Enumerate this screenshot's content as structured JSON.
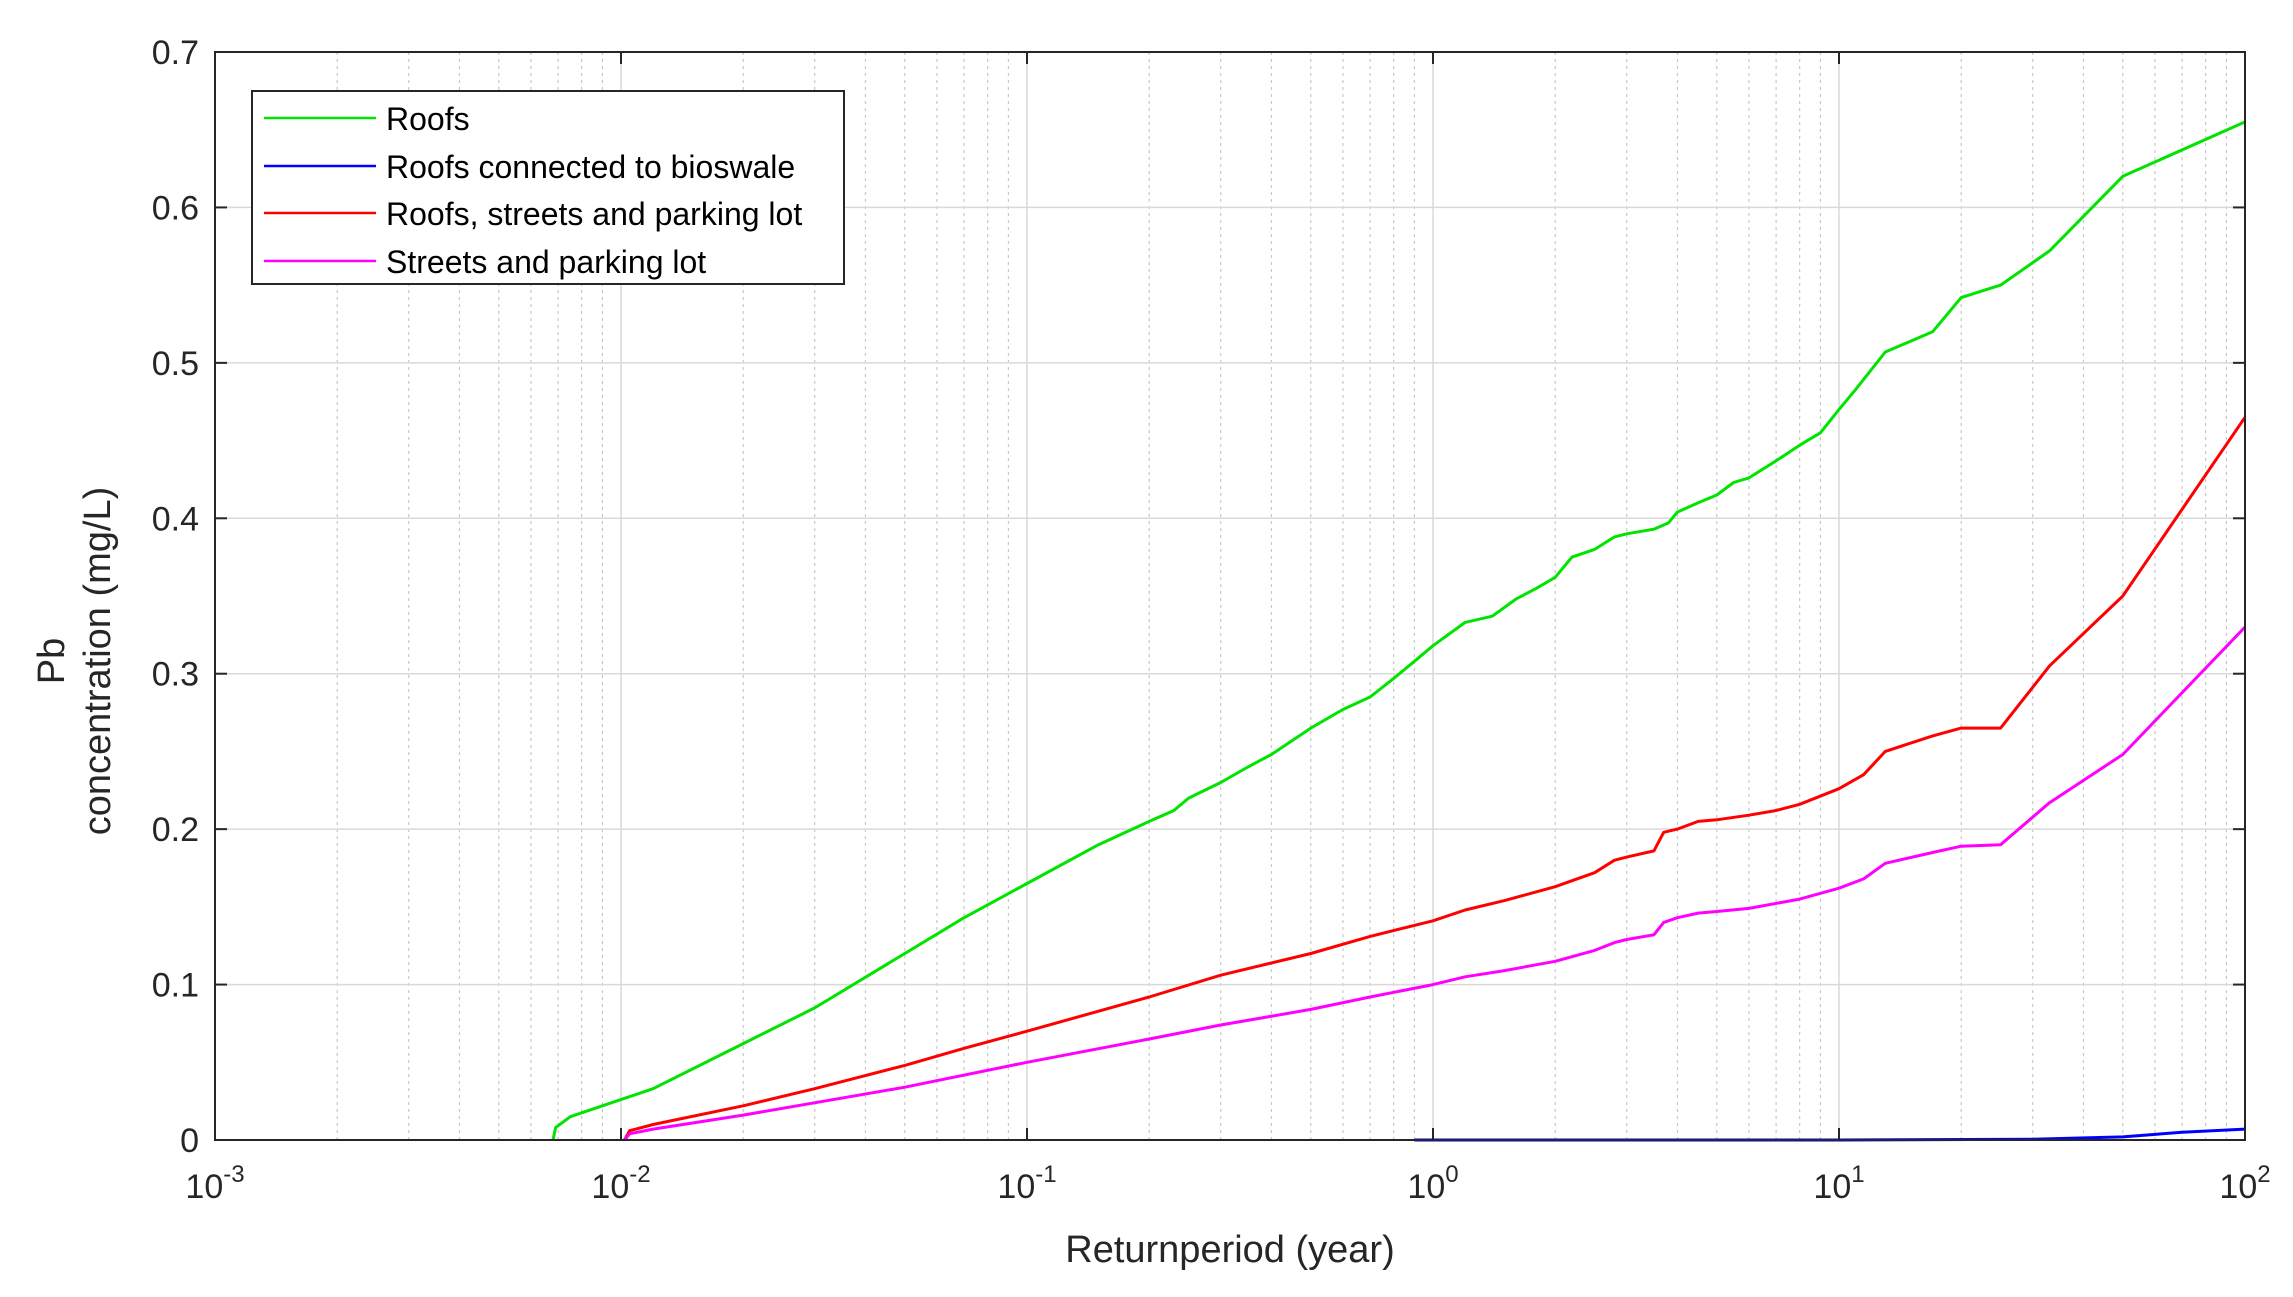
{
  "chart_data": {
    "type": "line",
    "title": "",
    "xlabel": "Returnperiod (year)",
    "ylabel_lines": [
      "Pb",
      "concentration (mg/L)"
    ],
    "x_scale": "log",
    "xlim": [
      0.001,
      100
    ],
    "ylim": [
      0,
      0.7
    ],
    "x_ticks": [
      {
        "value": 0.001,
        "base": "10",
        "exp": "-3"
      },
      {
        "value": 0.01,
        "base": "10",
        "exp": "-2"
      },
      {
        "value": 0.1,
        "base": "10",
        "exp": "-1"
      },
      {
        "value": 1,
        "base": "10",
        "exp": "0"
      },
      {
        "value": 10,
        "base": "10",
        "exp": "1"
      },
      {
        "value": 100,
        "base": "10",
        "exp": "2"
      }
    ],
    "y_ticks": [
      {
        "value": 0,
        "label": "0"
      },
      {
        "value": 0.1,
        "label": "0.1"
      },
      {
        "value": 0.2,
        "label": "0.2"
      },
      {
        "value": 0.3,
        "label": "0.3"
      },
      {
        "value": 0.4,
        "label": "0.4"
      },
      {
        "value": 0.5,
        "label": "0.5"
      },
      {
        "value": 0.6,
        "label": "0.6"
      },
      {
        "value": 0.7,
        "label": "0.7"
      }
    ],
    "grid": true,
    "minor_grid_x": true,
    "legend_position": "top-left",
    "series": [
      {
        "name": "Roofs",
        "color": "#00e400",
        "points": [
          [
            0.0068,
            0
          ],
          [
            0.0069,
            0.008
          ],
          [
            0.0075,
            0.015
          ],
          [
            0.009,
            0.022
          ],
          [
            0.012,
            0.033
          ],
          [
            0.02,
            0.062
          ],
          [
            0.03,
            0.085
          ],
          [
            0.05,
            0.12
          ],
          [
            0.07,
            0.143
          ],
          [
            0.1,
            0.165
          ],
          [
            0.15,
            0.19
          ],
          [
            0.2,
            0.205
          ],
          [
            0.23,
            0.212
          ],
          [
            0.25,
            0.22
          ],
          [
            0.3,
            0.23
          ],
          [
            0.35,
            0.24
          ],
          [
            0.4,
            0.248
          ],
          [
            0.5,
            0.265
          ],
          [
            0.6,
            0.277
          ],
          [
            0.7,
            0.285
          ],
          [
            0.8,
            0.297
          ],
          [
            0.9,
            0.308
          ],
          [
            1.0,
            0.318
          ],
          [
            1.2,
            0.333
          ],
          [
            1.4,
            0.337
          ],
          [
            1.6,
            0.348
          ],
          [
            1.8,
            0.355
          ],
          [
            2.0,
            0.362
          ],
          [
            2.2,
            0.375
          ],
          [
            2.5,
            0.38
          ],
          [
            2.8,
            0.388
          ],
          [
            3.0,
            0.39
          ],
          [
            3.5,
            0.393
          ],
          [
            3.8,
            0.397
          ],
          [
            4.0,
            0.404
          ],
          [
            4.5,
            0.41
          ],
          [
            5.0,
            0.415
          ],
          [
            5.5,
            0.423
          ],
          [
            6.0,
            0.426
          ],
          [
            7.0,
            0.437
          ],
          [
            8.0,
            0.447
          ],
          [
            9.0,
            0.455
          ],
          [
            10.0,
            0.47
          ],
          [
            11.0,
            0.483
          ],
          [
            13.0,
            0.507
          ],
          [
            17.0,
            0.52
          ],
          [
            20.0,
            0.542
          ],
          [
            25.0,
            0.55
          ],
          [
            33.0,
            0.572
          ],
          [
            50.0,
            0.62
          ],
          [
            100.0,
            0.655
          ]
        ]
      },
      {
        "name": "Roofs connected to bioswale",
        "color": "#0000ff",
        "points": [
          [
            0.9,
            0
          ],
          [
            10.0,
            0
          ],
          [
            30.0,
            0.0005
          ],
          [
            50.0,
            0.002
          ],
          [
            70.0,
            0.005
          ],
          [
            100.0,
            0.007
          ]
        ]
      },
      {
        "name": "Roofs, streets and parking lot",
        "color": "#ff0000",
        "points": [
          [
            0.0102,
            0
          ],
          [
            0.0105,
            0.006
          ],
          [
            0.012,
            0.01
          ],
          [
            0.02,
            0.022
          ],
          [
            0.03,
            0.033
          ],
          [
            0.05,
            0.048
          ],
          [
            0.07,
            0.059
          ],
          [
            0.1,
            0.07
          ],
          [
            0.2,
            0.092
          ],
          [
            0.3,
            0.106
          ],
          [
            0.5,
            0.12
          ],
          [
            0.7,
            0.131
          ],
          [
            1.0,
            0.141
          ],
          [
            1.2,
            0.148
          ],
          [
            1.5,
            0.154
          ],
          [
            2.0,
            0.163
          ],
          [
            2.5,
            0.172
          ],
          [
            2.8,
            0.18
          ],
          [
            3.0,
            0.182
          ],
          [
            3.5,
            0.186
          ],
          [
            3.7,
            0.198
          ],
          [
            4.0,
            0.2
          ],
          [
            4.5,
            0.205
          ],
          [
            5.0,
            0.206
          ],
          [
            6.0,
            0.209
          ],
          [
            7.0,
            0.212
          ],
          [
            8.0,
            0.216
          ],
          [
            10.0,
            0.226
          ],
          [
            11.5,
            0.235
          ],
          [
            13.0,
            0.25
          ],
          [
            17.0,
            0.26
          ],
          [
            20.0,
            0.265
          ],
          [
            25.0,
            0.265
          ],
          [
            33.0,
            0.305
          ],
          [
            50.0,
            0.35
          ],
          [
            100.0,
            0.465
          ]
        ]
      },
      {
        "name": "Streets and parking lot",
        "color": "#ff00ff",
        "points": [
          [
            0.0102,
            0
          ],
          [
            0.0105,
            0.004
          ],
          [
            0.012,
            0.007
          ],
          [
            0.02,
            0.016
          ],
          [
            0.05,
            0.034
          ],
          [
            0.1,
            0.05
          ],
          [
            0.2,
            0.065
          ],
          [
            0.3,
            0.074
          ],
          [
            0.5,
            0.084
          ],
          [
            0.7,
            0.092
          ],
          [
            1.0,
            0.1
          ],
          [
            1.2,
            0.105
          ],
          [
            1.5,
            0.109
          ],
          [
            2.0,
            0.115
          ],
          [
            2.5,
            0.122
          ],
          [
            2.8,
            0.127
          ],
          [
            3.0,
            0.129
          ],
          [
            3.5,
            0.132
          ],
          [
            3.7,
            0.14
          ],
          [
            4.0,
            0.143
          ],
          [
            4.5,
            0.146
          ],
          [
            5.0,
            0.147
          ],
          [
            6.0,
            0.149
          ],
          [
            8.0,
            0.155
          ],
          [
            10.0,
            0.162
          ],
          [
            11.5,
            0.168
          ],
          [
            13.0,
            0.178
          ],
          [
            17.0,
            0.185
          ],
          [
            20.0,
            0.189
          ],
          [
            25.0,
            0.19
          ],
          [
            33.0,
            0.217
          ],
          [
            50.0,
            0.248
          ],
          [
            100.0,
            0.33
          ]
        ]
      }
    ]
  }
}
